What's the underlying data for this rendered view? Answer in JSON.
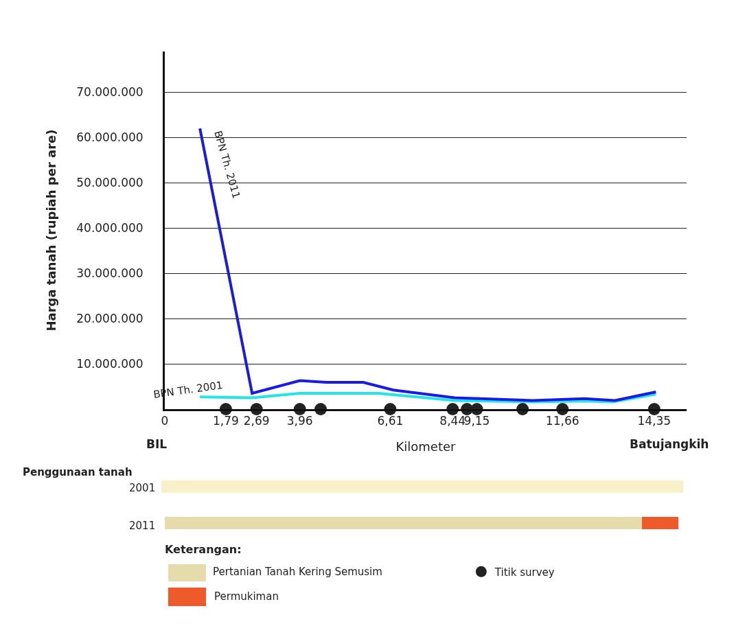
{
  "chart_data": {
    "type": "line",
    "xlabel": "Kilometer",
    "ylabel": "Harga tanah (rupiah per are)",
    "xlim": [
      0,
      15.3
    ],
    "ylim": [
      0,
      79000000
    ],
    "xticks": [
      {
        "value": 0,
        "label": "0"
      },
      {
        "value": 1.79,
        "label": "1,79"
      },
      {
        "value": 2.69,
        "label": "2,69"
      },
      {
        "value": 3.96,
        "label": "3,96"
      },
      {
        "value": 6.61,
        "label": "6,61"
      },
      {
        "value": 8.44,
        "label": "8,44"
      },
      {
        "value": 9.15,
        "label": "9,15"
      },
      {
        "value": 11.66,
        "label": "11,66"
      },
      {
        "value": 14.35,
        "label": "14,35"
      }
    ],
    "yticks": [
      {
        "value": 10000000,
        "label": "10.000.000"
      },
      {
        "value": 20000000,
        "label": "20.000.000"
      },
      {
        "value": 30000000,
        "label": "30.000.000"
      },
      {
        "value": 40000000,
        "label": "40.000.000"
      },
      {
        "value": 50000000,
        "label": "50.000.000"
      },
      {
        "value": 60000000,
        "label": "60.000.000"
      },
      {
        "value": 70000000,
        "label": "70.000.000"
      }
    ],
    "grid": "y",
    "legend": "bottom",
    "series": [
      {
        "name": "BPN Th. 2001",
        "marker": "none",
        "color": "#22e6e6",
        "x": [
          1.03,
          2.56,
          3.96,
          6.26,
          8.5,
          10.79,
          12.3,
          13.14,
          14.4
        ],
        "values": [
          2700000,
          2500000,
          3500000,
          3500000,
          1900000,
          1600000,
          1800000,
          1600000,
          3300000
        ]
      },
      {
        "name": "BPN Th. 2011",
        "marker": "none",
        "color": "#1a1ae6",
        "x": [
          1.03,
          2.56,
          3.96,
          4.74,
          5.82,
          6.7,
          8.5,
          10.79,
          12.3,
          13.2,
          14.4
        ],
        "values": [
          62000000,
          3500000,
          6300000,
          5900000,
          5900000,
          4200000,
          2500000,
          1900000,
          2300000,
          1900000,
          3800000
        ]
      },
      {
        "name": "Titik survey",
        "type": "scatter",
        "marker": "circle",
        "color": "#222222",
        "x": [
          1.79,
          2.69,
          3.96,
          4.57,
          6.61,
          8.44,
          8.86,
          9.15,
          10.49,
          11.66,
          14.35
        ],
        "values": [
          0,
          0,
          0,
          0,
          0,
          0,
          0,
          0,
          0,
          0,
          0
        ]
      }
    ],
    "annotations": [
      "BIL",
      "Batujangkih",
      "Penggunaan tanah",
      "2001",
      "2011",
      "Keterangan:",
      "Pertanian Tanah Kering Semusim",
      "Permukiman"
    ]
  }
}
